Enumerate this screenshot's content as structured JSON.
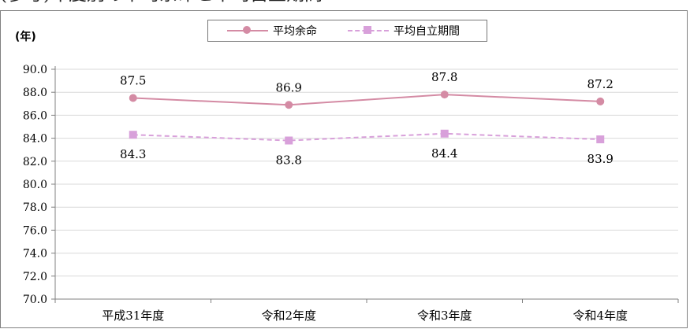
{
  "chart_data": {
    "type": "line",
    "heading_partial": "(参考)年度別の平均余命と平均自立期間",
    "ylabel": "(年)",
    "categories": [
      "平成31年度",
      "令和2年度",
      "令和3年度",
      "令和4年度"
    ],
    "ylim": [
      70.0,
      90.0
    ],
    "yticks": [
      "70.0",
      "72.0",
      "74.0",
      "76.0",
      "78.0",
      "80.0",
      "82.0",
      "84.0",
      "86.0",
      "88.0",
      "90.0"
    ],
    "grid": true,
    "legend_position": "top-center",
    "series": [
      {
        "name": "平均余命",
        "values": [
          87.5,
          86.9,
          87.8,
          87.2
        ],
        "labels": [
          "87.5",
          "86.9",
          "87.8",
          "87.2"
        ],
        "color": "#d48ba4",
        "marker": "circle",
        "line_style": "solid"
      },
      {
        "name": "平均自立期間",
        "values": [
          84.3,
          83.8,
          84.4,
          83.9
        ],
        "labels": [
          "84.3",
          "83.8",
          "84.4",
          "83.9"
        ],
        "color": "#d8a0da",
        "marker": "square",
        "line_style": "dashed"
      }
    ]
  }
}
